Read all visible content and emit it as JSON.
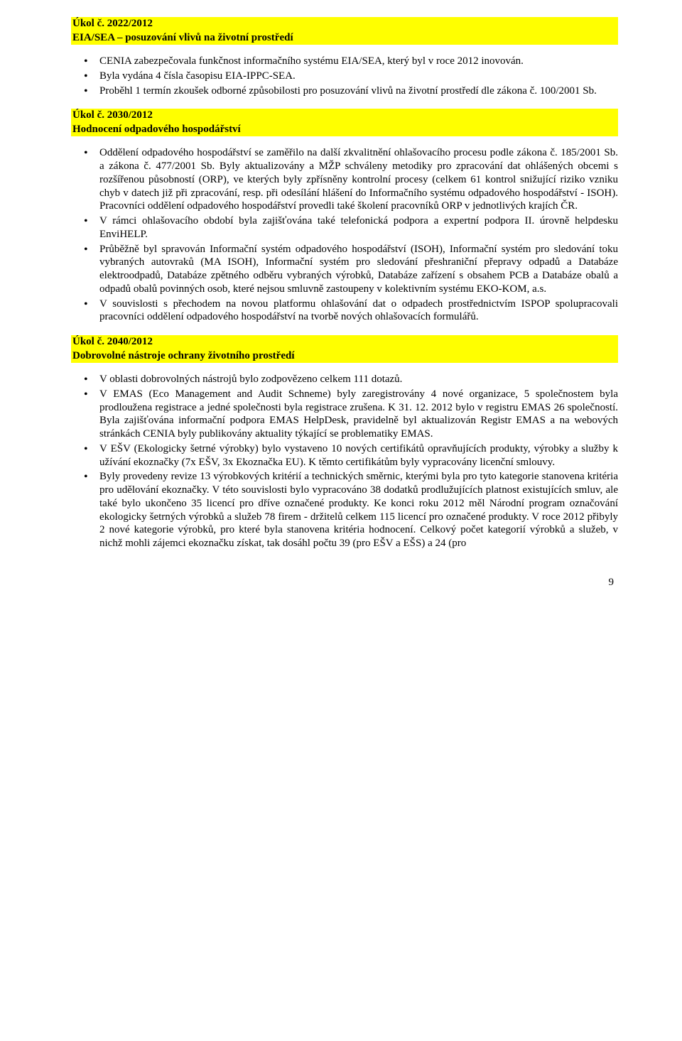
{
  "colors": {
    "highlight": "#ffff00",
    "text": "#000000",
    "background": "#ffffff"
  },
  "page_number": "9",
  "sections": [
    {
      "header_lines": [
        "Úkol č. 2022/2012",
        "EIA/SEA – posuzování vlivů na životní prostředí"
      ],
      "bullets": [
        "CENIA zabezpečovala funkčnost informačního systému EIA/SEA, který byl v roce 2012 inovován.",
        "Byla vydána 4 čísla časopisu EIA-IPPC-SEA.",
        "Proběhl 1 termín zkoušek odborné způsobilosti pro posuzování vlivů na životní prostředí dle zákona č. 100/2001 Sb."
      ]
    },
    {
      "header_lines": [
        "Úkol č. 2030/2012",
        "Hodnocení odpadového hospodářství"
      ],
      "bullets": [
        "Oddělení odpadového hospodářství se zaměřilo na další zkvalitnění ohlašovacího procesu podle zákona č. 185/2001 Sb. a zákona č. 477/2001 Sb. Byly aktualizovány a MŽP schváleny metodiky pro zpracování dat ohlášených obcemi s rozšířenou působností (ORP), ve kterých byly zpřísněny kontrolní procesy (celkem 61 kontrol snižující riziko vzniku chyb v datech již při zpracování, resp. při odesílání hlášení do Informačního systému odpadového hospodářství - ISOH). Pracovníci oddělení odpadového hospodářství provedli také školení pracovníků ORP v jednotlivých krajích ČR.",
        "V rámci ohlašovacího období byla zajišťována také telefonická podpora a expertní podpora II. úrovně helpdesku EnviHELP.",
        "Průběžně byl spravován Informační systém odpadového hospodářství (ISOH), Informační systém pro sledování toku vybraných autovraků (MA ISOH), Informační systém pro sledování přeshraniční přepravy odpadů a Databáze elektroodpadů, Databáze zpětného odběru vybraných výrobků, Databáze zařízení s obsahem PCB a Databáze obalů a odpadů obalů povinných osob, které nejsou smluvně zastoupeny v kolektivním systému EKO-KOM, a.s.",
        "V souvislosti s přechodem na novou platformu ohlašování dat o odpadech prostřednictvím ISPOP spolupracovali pracovníci oddělení odpadového hospodářství na tvorbě nových ohlašovacích formulářů."
      ]
    },
    {
      "header_lines": [
        "Úkol č. 2040/2012",
        "Dobrovolné nástroje ochrany životního prostředí"
      ],
      "bullets": [
        "V oblasti dobrovolných nástrojů bylo zodpovězeno celkem 111 dotazů.",
        "V EMAS (Eco Management and Audit Schneme) byly zaregistrovány 4 nové organizace, 5 společnostem byla prodloužena registrace a jedné společnosti byla registrace zrušena. K 31. 12. 2012 bylo v registru EMAS 26 společností. Byla zajišťována informační podpora EMAS HelpDesk, pravidelně byl aktualizován Registr EMAS a na webových stránkách CENIA byly publikovány aktuality týkající se problematiky EMAS.",
        "V EŠV (Ekologicky šetrné výrobky) bylo vystaveno 10 nových certifikátů opravňujících produkty, výrobky a služby k užívání ekoznačky (7x EŠV, 3x Ekoznačka EU). K těmto certifikátům byly vypracovány licenční smlouvy.",
        "Byly provedeny revize 13 výrobkových kritérií a technických směrnic, kterými byla pro tyto kategorie stanovena kritéria pro udělování ekoznačky. V této souvislosti bylo vypracováno 38 dodatků prodlužujících platnost existujících smluv, ale také bylo ukončeno 35 licencí pro dříve označené produkty. Ke konci roku 2012 měl Národní program označování ekologicky šetrných výrobků a služeb 78 firem - držitelů celkem 115 licencí pro označené produkty. V roce 2012 přibyly 2 nové kategorie výrobků, pro které byla stanovena kritéria hodnocení. Celkový počet kategorií výrobků a služeb, v nichž mohli zájemci ekoznačku získat, tak dosáhl počtu 39 (pro EŠV a EŠS) a 24 (pro"
      ]
    }
  ]
}
